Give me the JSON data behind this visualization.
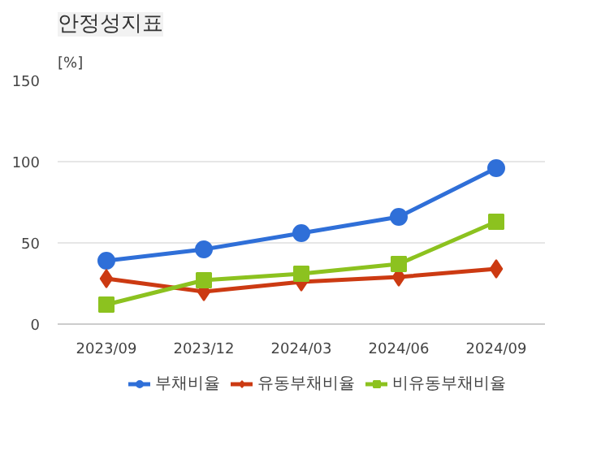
{
  "chart_data": {
    "type": "line",
    "title": "안정성지표",
    "ylabel": "[%]",
    "categories": [
      "2023/09",
      "2023/12",
      "2024/03",
      "2024/06",
      "2024/09"
    ],
    "series": [
      {
        "name": "부채비율",
        "color": "#2f6fd8",
        "marker": "circle",
        "values": [
          39,
          46,
          56,
          66,
          96
        ]
      },
      {
        "name": "유동부채비율",
        "color": "#cc3a12",
        "marker": "diamond",
        "values": [
          28,
          20,
          26,
          29,
          34
        ]
      },
      {
        "name": "비유동부채비율",
        "color": "#8cc21f",
        "marker": "square",
        "values": [
          12,
          27,
          31,
          37,
          63
        ]
      }
    ],
    "ylim": [
      0,
      150
    ],
    "yticks": [
      0,
      50,
      100,
      150
    ],
    "grid": "y",
    "legend": "bottom"
  }
}
